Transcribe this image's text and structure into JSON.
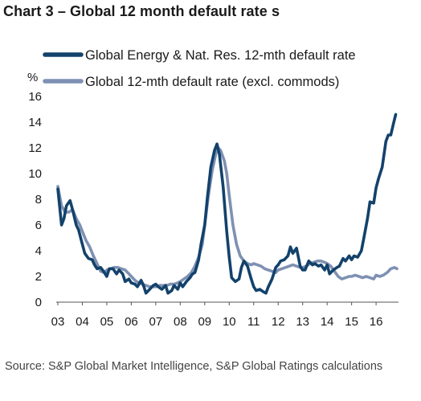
{
  "title": "Chart 3 – Global 12 month default rate s",
  "source": "Source: S&P Global Market Intelligence, S&P Global Ratings calculations",
  "chart_data": {
    "type": "line",
    "title": "Chart 3 – Global 12 month default rate s",
    "ylabel": "%",
    "xlabel": "",
    "ylim": [
      0,
      16
    ],
    "yticks": [
      0,
      2,
      4,
      6,
      8,
      10,
      12,
      14,
      16
    ],
    "xlim": [
      2003.0,
      2016.85
    ],
    "xtick_labels": [
      "03",
      "04",
      "05",
      "06",
      "07",
      "08",
      "09",
      "10",
      "11",
      "12",
      "13",
      "14",
      "15",
      "16"
    ],
    "grid": false,
    "legend_position": "top",
    "series": [
      {
        "name": "Global Energy & Nat. Res. 12-mth default rate",
        "color": "#13426b",
        "x": [
          2003.0,
          2003.15,
          2003.25,
          2003.35,
          2003.5,
          2003.6,
          2003.75,
          2003.85,
          2004.0,
          2004.1,
          2004.25,
          2004.4,
          2004.5,
          2004.6,
          2004.75,
          2004.9,
          2005.0,
          2005.1,
          2005.25,
          2005.4,
          2005.5,
          2005.65,
          2005.75,
          2005.9,
          2006.0,
          2006.15,
          2006.25,
          2006.4,
          2006.5,
          2006.6,
          2006.75,
          2006.9,
          2007.0,
          2007.1,
          2007.25,
          2007.4,
          2007.5,
          2007.65,
          2007.75,
          2007.9,
          2008.0,
          2008.1,
          2008.25,
          2008.4,
          2008.5,
          2008.6,
          2008.75,
          2008.85,
          2009.0,
          2009.1,
          2009.25,
          2009.4,
          2009.5,
          2009.6,
          2009.75,
          2009.9,
          2010.0,
          2010.1,
          2010.25,
          2010.4,
          2010.5,
          2010.6,
          2010.75,
          2010.9,
          2011.0,
          2011.1,
          2011.25,
          2011.4,
          2011.5,
          2011.6,
          2011.75,
          2011.9,
          2012.0,
          2012.1,
          2012.25,
          2012.4,
          2012.5,
          2012.6,
          2012.75,
          2012.9,
          2013.0,
          2013.1,
          2013.25,
          2013.4,
          2013.5,
          2013.65,
          2013.75,
          2013.9,
          2014.0,
          2014.1,
          2014.25,
          2014.4,
          2014.5,
          2014.65,
          2014.75,
          2014.9,
          2015.0,
          2015.1,
          2015.25,
          2015.4,
          2015.5,
          2015.65,
          2015.75,
          2015.9,
          2016.0,
          2016.1,
          2016.25,
          2016.4,
          2016.5,
          2016.6,
          2016.7,
          2016.8
        ],
        "values": [
          8.8,
          6.0,
          6.5,
          7.5,
          7.9,
          7.2,
          6.0,
          5.6,
          4.5,
          3.8,
          3.4,
          3.3,
          2.9,
          2.6,
          2.7,
          2.3,
          2.0,
          2.6,
          2.6,
          2.2,
          2.5,
          2.2,
          1.6,
          1.8,
          1.5,
          1.4,
          1.2,
          1.7,
          1.3,
          0.7,
          1.0,
          1.3,
          1.4,
          1.2,
          1.0,
          1.3,
          0.7,
          0.9,
          1.3,
          1.0,
          1.5,
          1.2,
          1.6,
          1.9,
          2.2,
          2.3,
          3.3,
          4.5,
          6.0,
          8.0,
          10.5,
          11.8,
          12.3,
          11.5,
          9.0,
          5.5,
          3.5,
          1.9,
          1.6,
          1.8,
          2.7,
          3.2,
          2.8,
          1.8,
          1.2,
          0.9,
          1.0,
          0.8,
          0.7,
          1.2,
          1.8,
          2.7,
          2.9,
          3.2,
          3.3,
          3.6,
          4.3,
          3.8,
          4.2,
          2.8,
          2.5,
          2.5,
          3.2,
          2.9,
          3.0,
          2.8,
          2.9,
          2.5,
          2.9,
          2.2,
          2.5,
          2.7,
          2.8,
          3.4,
          3.2,
          3.6,
          3.3,
          3.6,
          3.5,
          4.0,
          5.0,
          6.5,
          7.8,
          7.7,
          8.9,
          9.6,
          10.5,
          12.5,
          13.0,
          13.0,
          13.8,
          14.6
        ]
      },
      {
        "name": "Global 12-mth default rate (excl. commods)",
        "color": "#7f91b3",
        "x": [
          2003.0,
          2003.15,
          2003.3,
          2003.45,
          2003.6,
          2003.75,
          2003.9,
          2004.0,
          2004.15,
          2004.3,
          2004.45,
          2004.6,
          2004.75,
          2004.9,
          2005.0,
          2005.15,
          2005.3,
          2005.45,
          2005.6,
          2005.75,
          2005.9,
          2006.0,
          2006.15,
          2006.3,
          2006.45,
          2006.6,
          2006.75,
          2006.9,
          2007.0,
          2007.15,
          2007.3,
          2007.45,
          2007.6,
          2007.75,
          2007.9,
          2008.0,
          2008.15,
          2008.3,
          2008.45,
          2008.6,
          2008.75,
          2008.9,
          2009.0,
          2009.15,
          2009.3,
          2009.45,
          2009.55,
          2009.65,
          2009.8,
          2009.9,
          2010.0,
          2010.15,
          2010.3,
          2010.45,
          2010.6,
          2010.75,
          2010.9,
          2011.0,
          2011.15,
          2011.3,
          2011.45,
          2011.6,
          2011.75,
          2011.9,
          2012.0,
          2012.15,
          2012.3,
          2012.45,
          2012.6,
          2012.75,
          2012.9,
          2013.0,
          2013.15,
          2013.3,
          2013.45,
          2013.6,
          2013.75,
          2013.9,
          2014.0,
          2014.15,
          2014.3,
          2014.45,
          2014.6,
          2014.75,
          2014.9,
          2015.0,
          2015.15,
          2015.3,
          2015.45,
          2015.6,
          2015.75,
          2015.9,
          2016.0,
          2016.15,
          2016.3,
          2016.45,
          2016.6,
          2016.75,
          2016.85
        ],
        "values": [
          9.0,
          7.5,
          7.0,
          7.0,
          7.2,
          6.5,
          6.0,
          5.5,
          4.8,
          4.3,
          3.6,
          3.0,
          2.4,
          2.3,
          2.5,
          2.6,
          2.7,
          2.7,
          2.6,
          2.5,
          2.2,
          2.0,
          1.7,
          1.5,
          1.4,
          1.3,
          1.2,
          1.2,
          1.2,
          1.3,
          1.3,
          1.3,
          1.4,
          1.4,
          1.5,
          1.6,
          1.8,
          2.0,
          2.3,
          2.8,
          3.5,
          4.5,
          6.0,
          8.3,
          10.2,
          11.5,
          12.0,
          11.8,
          11.0,
          10.0,
          8.3,
          6.0,
          4.5,
          3.6,
          3.2,
          3.0,
          2.9,
          3.0,
          2.9,
          2.8,
          2.6,
          2.5,
          2.4,
          2.3,
          2.5,
          2.6,
          2.7,
          2.8,
          2.9,
          2.8,
          2.7,
          2.7,
          2.8,
          3.0,
          3.1,
          3.2,
          3.2,
          3.1,
          3.0,
          2.8,
          2.4,
          2.0,
          1.8,
          1.9,
          2.0,
          2.0,
          2.1,
          2.0,
          1.9,
          2.0,
          1.9,
          1.8,
          2.1,
          2.0,
          2.1,
          2.3,
          2.6,
          2.7,
          2.6
        ]
      }
    ]
  }
}
